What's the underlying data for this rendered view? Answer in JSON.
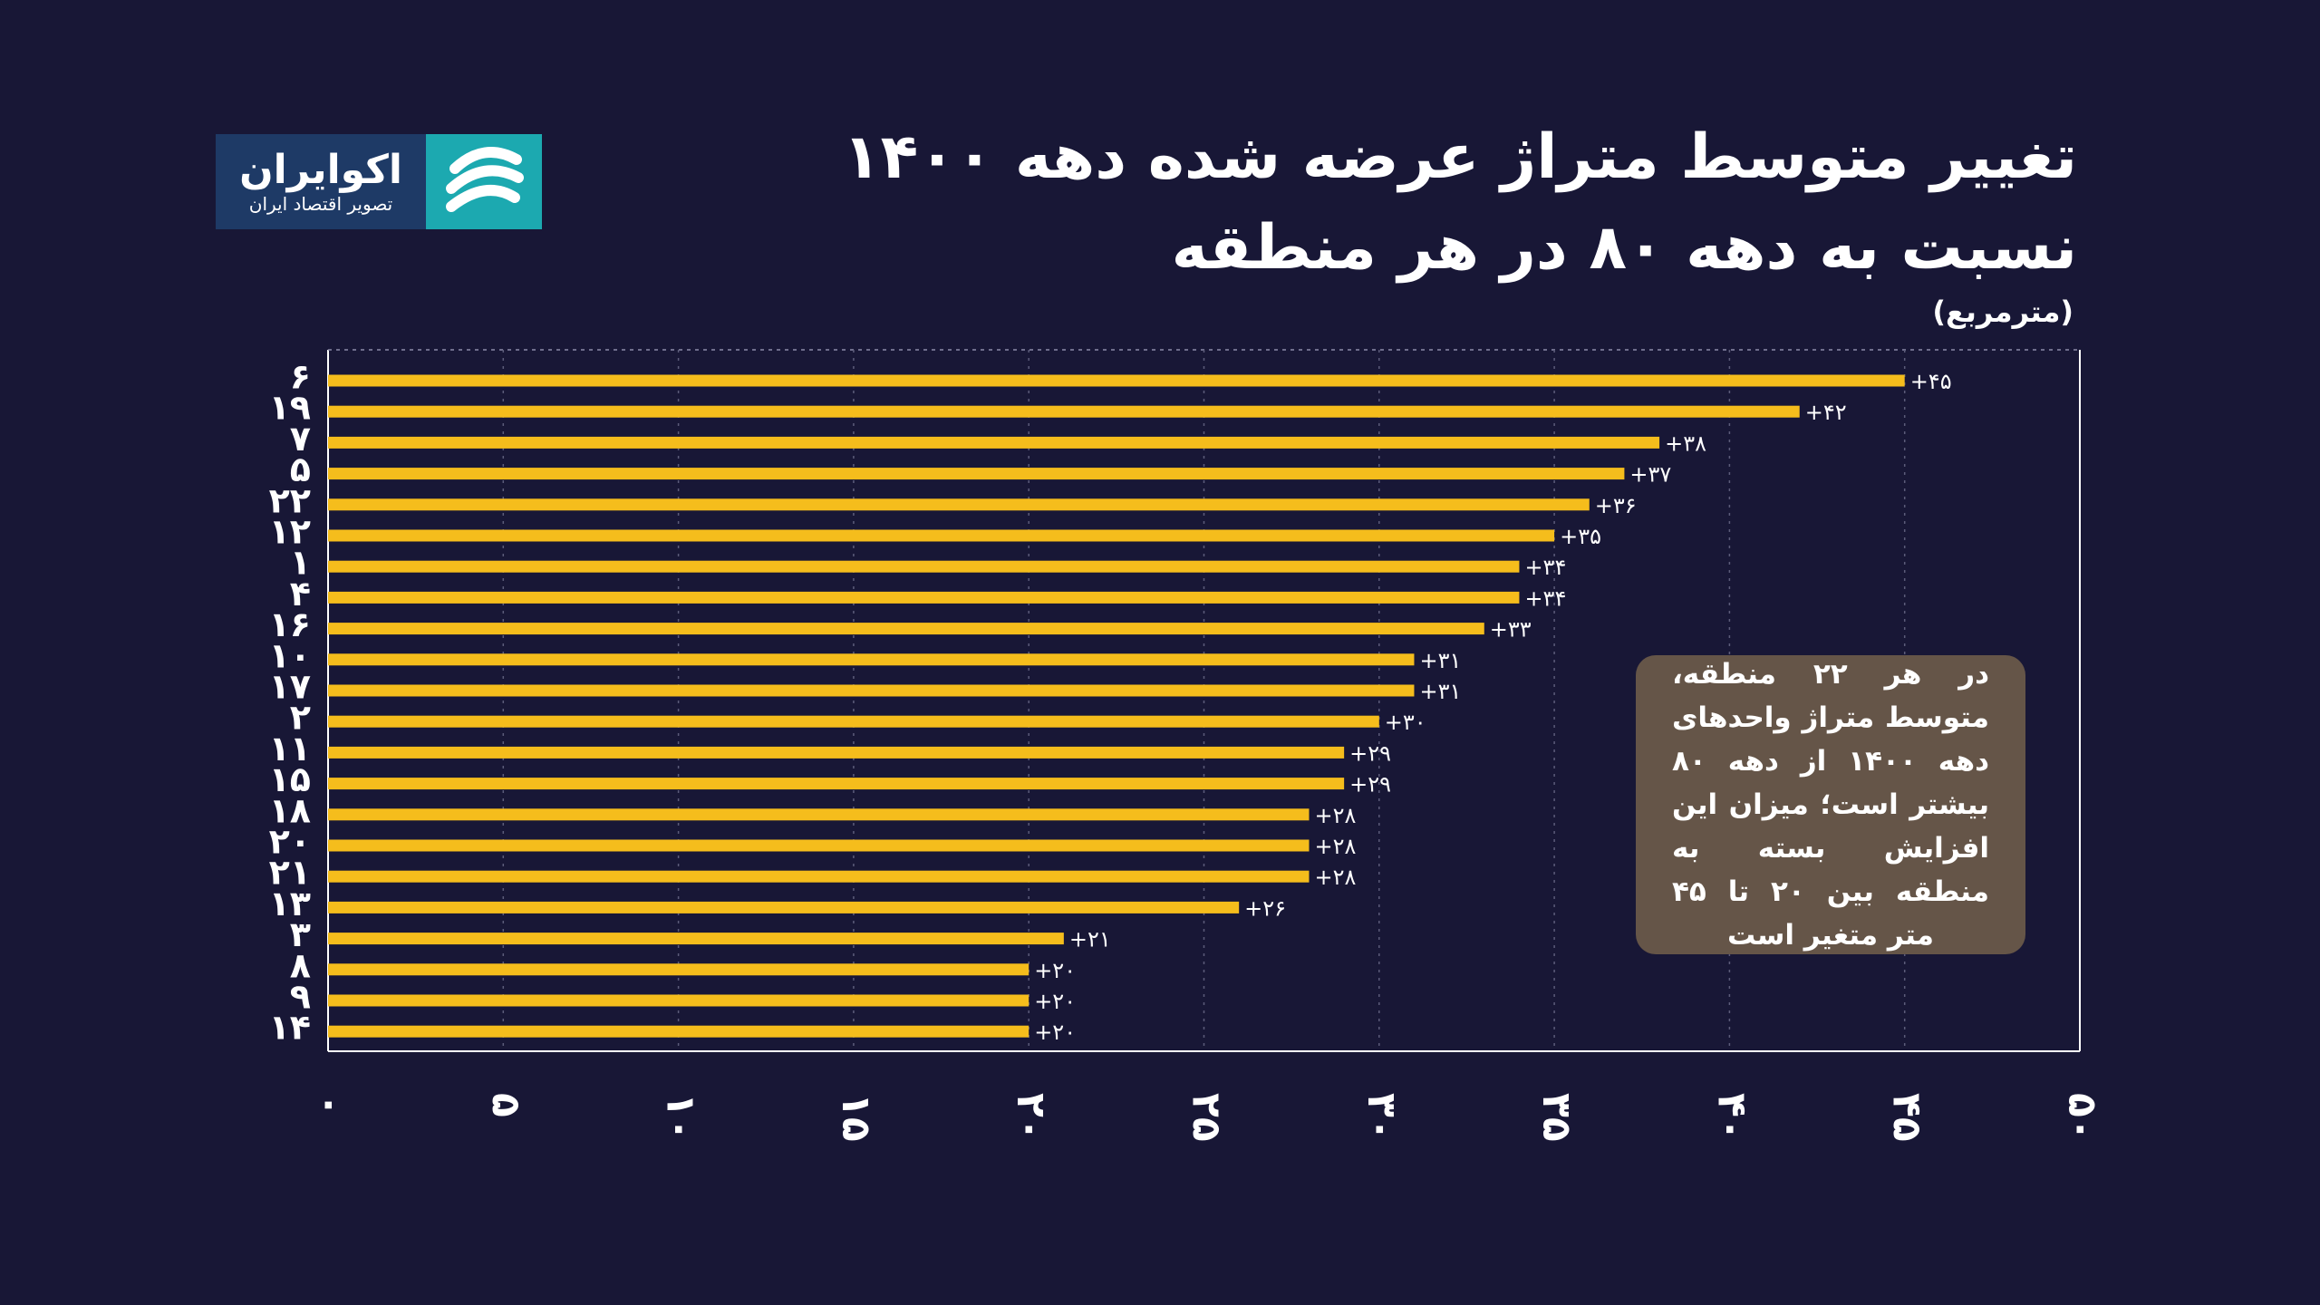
{
  "title_lines": [
    "تغییر متوسط متراژ عرضه شده دهه ۱۴۰۰",
    "نسبت به دهه ۸۰ در هر منطقه"
  ],
  "unit_label": "(مترمربع)",
  "logo": {
    "name": "اکوایران",
    "slogan": "تصویر اقتصاد ایران",
    "icon": "ecoiran-logo-icon"
  },
  "note": "در هر ۲۲ منطقه، متوسط متراژ واحدهای دهه ۱۴۰۰ از دهه ۸۰ بیشتر است؛ میزان این افزایش بسته به منطقه بین ۲۰ تا ۴۵ متر متغیر است",
  "colors": {
    "background": "#181736",
    "bar": "#f5bd1c",
    "note_box": "#655548",
    "logo_teal": "#1ca9b0",
    "logo_navy": "#1e3a66"
  },
  "chart_data": {
    "type": "bar",
    "orientation": "horizontal",
    "categories": [
      "۶",
      "۱۹",
      "۷",
      "۵",
      "۲۲",
      "۱۲",
      "۱",
      "۴",
      "۱۶",
      "۱۰",
      "۱۷",
      "۲",
      "۱۱",
      "۱۵",
      "۱۸",
      "۲۰",
      "۲۱",
      "۱۳",
      "۳",
      "۸",
      "۹",
      "۱۴"
    ],
    "values": [
      45,
      42,
      38,
      37,
      36,
      35,
      34,
      34,
      33,
      31,
      31,
      30,
      29,
      29,
      28,
      28,
      28,
      26,
      21,
      20,
      20,
      20
    ],
    "value_labels": [
      "+۴۵",
      "+۴۲",
      "+۳۸",
      "+۳۷",
      "+۳۶",
      "+۳۵",
      "+۳۴",
      "+۳۴",
      "+۳۳",
      "+۳۱",
      "+۳۱",
      "+۳۰",
      "+۲۹",
      "+۲۹",
      "+۲۸",
      "+۲۸",
      "+۲۸",
      "+۲۶",
      "+۲۱",
      "+۲۰",
      "+۲۰",
      "+۲۰"
    ],
    "x_ticks": [
      0,
      5,
      10,
      15,
      20,
      25,
      30,
      35,
      40,
      45,
      50
    ],
    "x_tick_labels": [
      "۰",
      "۵",
      "۱۰",
      "۱۵",
      "۲۰",
      "۲۵",
      "۳۰",
      "۳۵",
      "۴۰",
      "۴۵",
      "۵۰"
    ],
    "xlim": [
      0,
      50
    ],
    "grid": true,
    "title": "تغییر متوسط متراژ عرضه شده دهه ۱۴۰۰ نسبت به دهه ۸۰ در هر منطقه",
    "xlabel": "",
    "ylabel": ""
  }
}
